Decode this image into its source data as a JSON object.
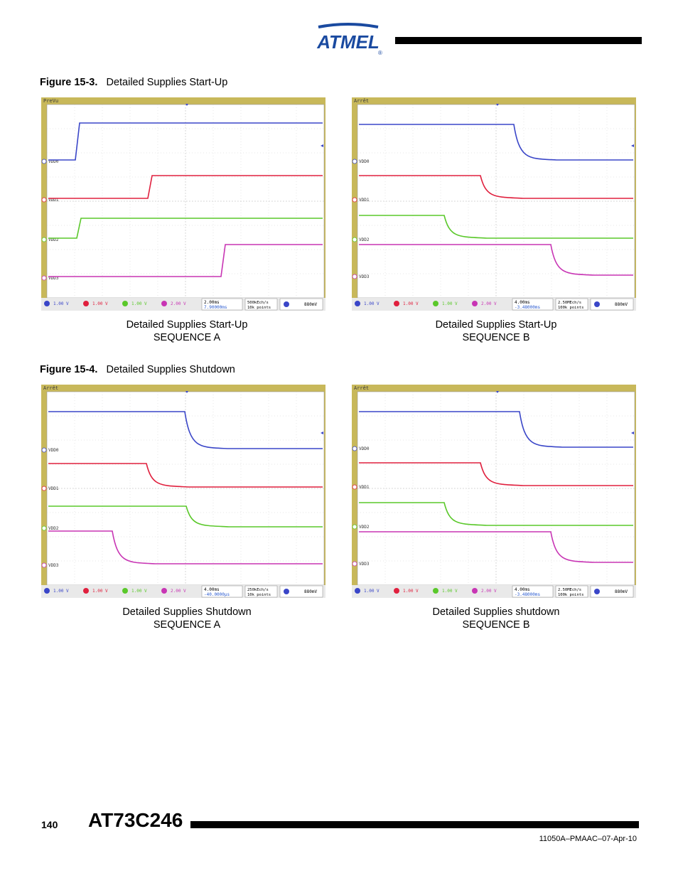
{
  "header": {
    "logo_text": "ATMEL",
    "logo_mark": "®"
  },
  "figures": [
    {
      "number": "Figure 15-3.",
      "title": "Detailed Supplies Start-Up",
      "scopes": [
        {
          "status": "PreVu",
          "caption1": "Detailed Supplies Start-Up",
          "caption2": "SEQUENCE A",
          "labels": [
            "VDD0",
            "VDD1",
            "VDD2",
            "VDD3"
          ],
          "ch": [
            "1.00 V",
            "1.00 V",
            "1.00 V",
            "2.00 V"
          ],
          "time": "2.00ms",
          "delay": "7.90000ms",
          "rate": "500kEch/s",
          "points": "10k points",
          "trig": "880mV",
          "colors": [
            "#3a46c8",
            "#e0203e",
            "#5ac82a",
            "#c835b4"
          ]
        },
        {
          "status": "Arrêt",
          "caption1": "Detailed Supplies Start-Up",
          "caption2": "SEQUENCE B",
          "labels": [
            "VDD0",
            "VDD1",
            "VDD2",
            "VDD3"
          ],
          "ch": [
            "1.00 V",
            "1.00 V",
            "1.00 V",
            "2.00 V"
          ],
          "time": "4.00ms",
          "delay": "-3.48000ms",
          "rate": "2.50MEch/s",
          "points": "100k points",
          "trig": "880mV",
          "colors": [
            "#3a46c8",
            "#e0203e",
            "#5ac82a",
            "#c835b4"
          ]
        }
      ]
    },
    {
      "number": "Figure 15-4.",
      "title": "Detailed Supplies Shutdown",
      "scopes": [
        {
          "status": "Arrêt",
          "caption1": "Detailed Supplies Shutdown",
          "caption2": "SEQUENCE A",
          "labels": [
            "VDD0",
            "VDD1",
            "VDD2",
            "VDD3"
          ],
          "ch": [
            "1.00 V",
            "1.00 V",
            "1.00 V",
            "2.00 V"
          ],
          "time": "4.00ms",
          "delay": "-40.0000µs",
          "rate": "250kEch/s",
          "points": "10k points",
          "trig": "880mV",
          "colors": [
            "#3a46c8",
            "#e0203e",
            "#5ac82a",
            "#c835b4"
          ]
        },
        {
          "status": "Arrêt",
          "caption1": "Detailed Supplies shutdown",
          "caption2": "SEQUENCE B",
          "labels": [
            "VDD0",
            "VDD1",
            "VDD2",
            "VDD3"
          ],
          "ch": [
            "1.00 V",
            "1.00 V",
            "1.00 V",
            "2.00 V"
          ],
          "time": "4.00ms",
          "delay": "-3.48000ms",
          "rate": "2.50MEch/s",
          "points": "100k points",
          "trig": "880mV",
          "colors": [
            "#3a46c8",
            "#e0203e",
            "#5ac82a",
            "#c835b4"
          ]
        }
      ]
    }
  ],
  "footer": {
    "page_number": "140",
    "doc_title": "AT73C246",
    "doc_ref": "11050A–PMAAC–07-Apr-10"
  }
}
